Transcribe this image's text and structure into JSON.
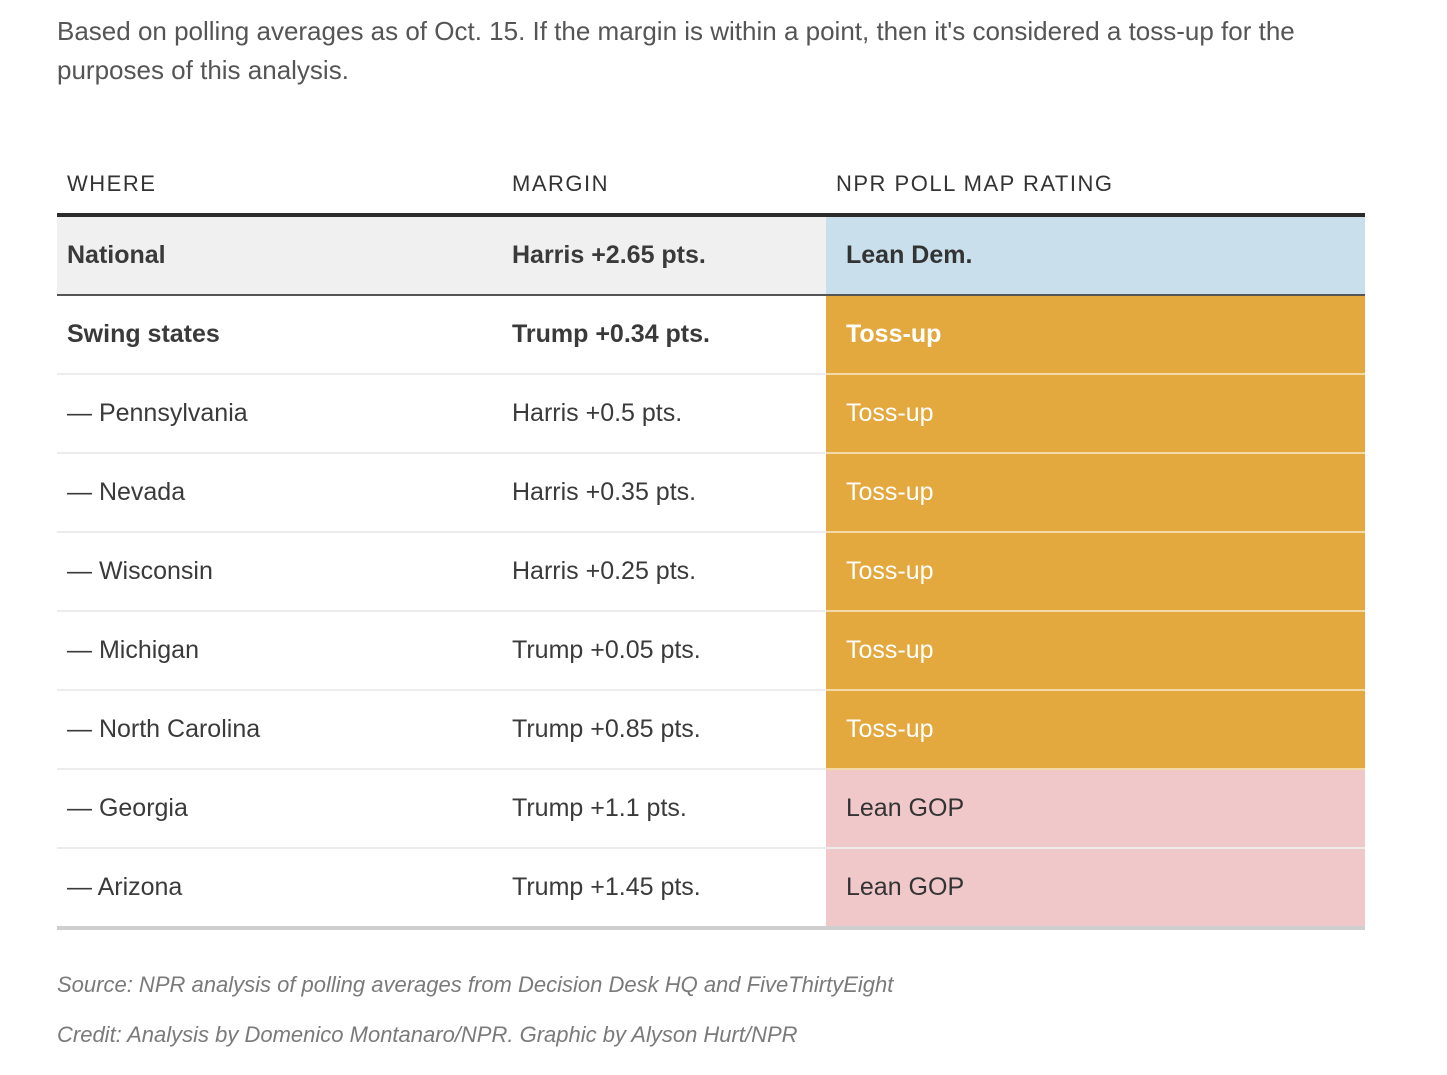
{
  "intro": "Based on polling averages as of Oct. 15. If the margin is within a point, then it's considered a toss-up for the purposes of this analysis.",
  "table": {
    "headers": [
      "WHERE",
      "MARGIN",
      "NPR POLL MAP RATING"
    ],
    "rows": [
      {
        "where": "National",
        "margin": "Harris +2.65 pts.",
        "rating": "Lean Dem."
      },
      {
        "where": "Swing states",
        "margin": "Trump +0.34 pts.",
        "rating": "Toss-up"
      },
      {
        "where": "— Pennsylvania",
        "margin": "Harris +0.5 pts.",
        "rating": "Toss-up"
      },
      {
        "where": "— Nevada",
        "margin": "Harris +0.35 pts.",
        "rating": "Toss-up"
      },
      {
        "where": "— Wisconsin",
        "margin": "Harris +0.25 pts.",
        "rating": "Toss-up"
      },
      {
        "where": "— Michigan",
        "margin": "Trump +0.05 pts.",
        "rating": "Toss-up"
      },
      {
        "where": "— North Carolina",
        "margin": "Trump +0.85 pts.",
        "rating": "Toss-up"
      },
      {
        "where": "— Georgia",
        "margin": "Trump +1.1 pts.",
        "rating": "Lean GOP"
      },
      {
        "where": "— Arizona",
        "margin": "Trump +1.45 pts.",
        "rating": "Lean GOP"
      }
    ]
  },
  "colors": {
    "lean_dem": "#c9dfec",
    "toss_up": "#e3a93e",
    "lean_gop": "#f0c8ca",
    "national_row": "#f0f0f0"
  },
  "source": "Source: NPR analysis of polling averages from Decision Desk HQ and FiveThirtyEight",
  "credit": "Credit: Analysis by Domenico Montanaro/NPR. Graphic by Alyson Hurt/NPR"
}
